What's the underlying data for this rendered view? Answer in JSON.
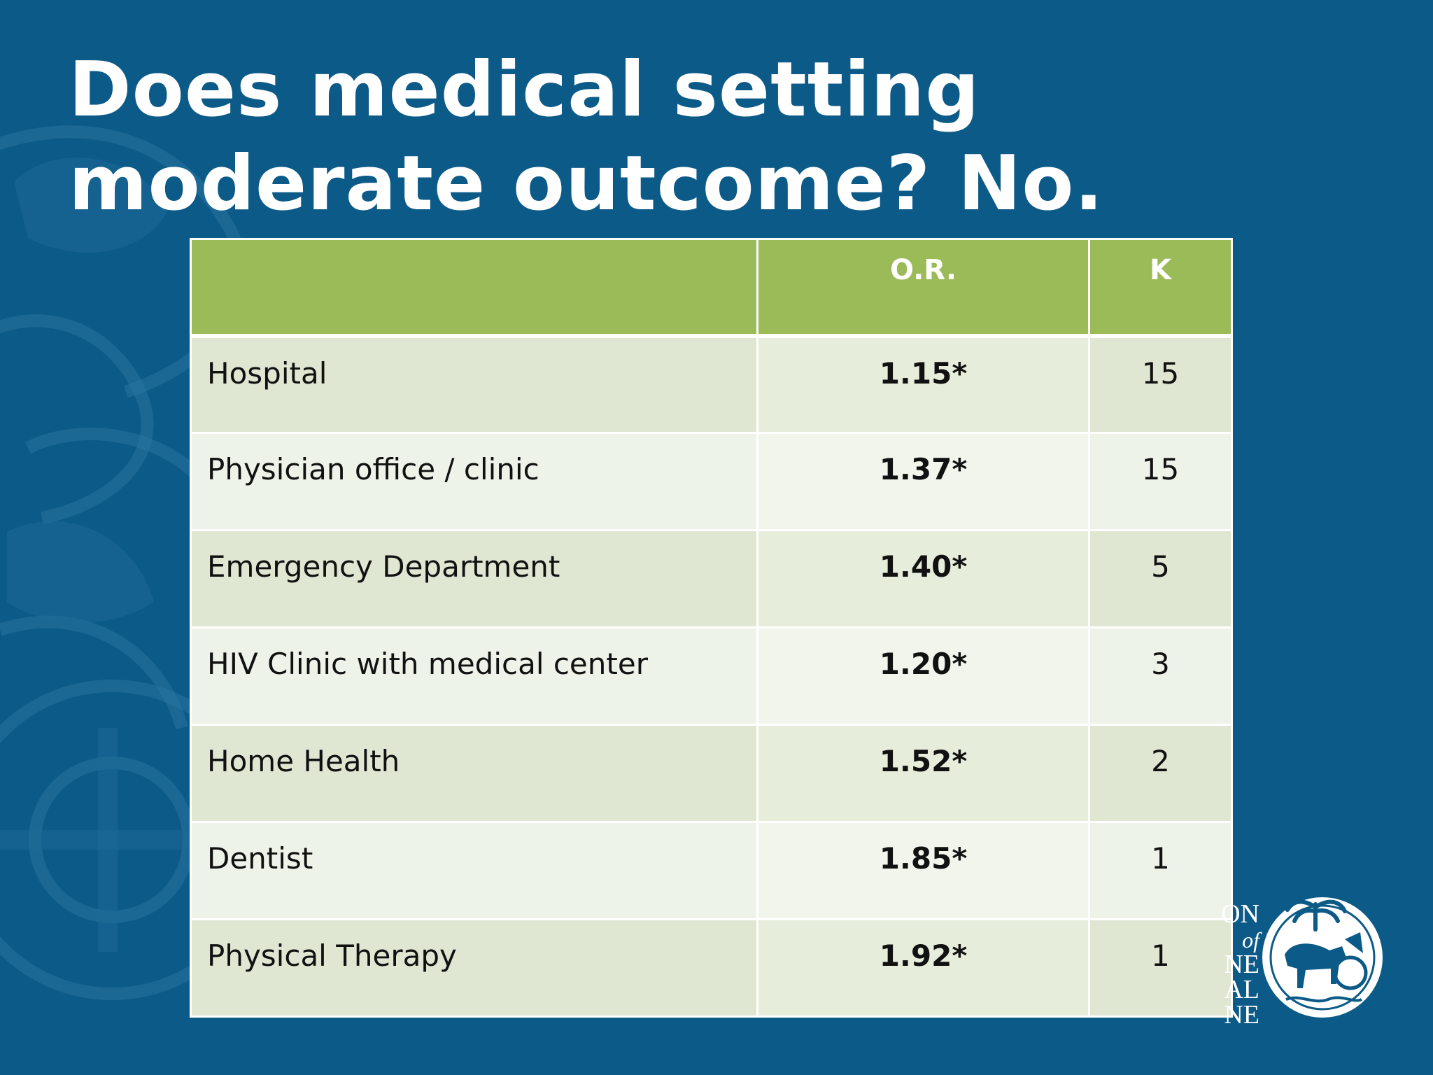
{
  "title": {
    "line1": "Does medical setting",
    "line2": "moderate outcome?  No."
  },
  "table": {
    "headers": [
      "",
      "O.R.",
      "K"
    ],
    "rows": [
      {
        "setting": "Hospital",
        "or": "1.15*",
        "k": "15"
      },
      {
        "setting": "Physician office / clinic",
        "or": "1.37*",
        "k": "15"
      },
      {
        "setting": "Emergency Department",
        "or": "1.40*",
        "k": "5"
      },
      {
        "setting": "HIV Clinic with medical center",
        "or": "1.20*",
        "k": "3"
      },
      {
        "setting": "Home Health",
        "or": "1.52*",
        "k": "2"
      },
      {
        "setting": "Dentist",
        "or": "1.85*",
        "k": "1"
      },
      {
        "setting": "Physical Therapy",
        "or": "1.92*",
        "k": "1"
      }
    ]
  },
  "logo": {
    "text_lines": [
      "ON",
      "of",
      "NE",
      "AL",
      "NE"
    ],
    "icon": "horse-chariot-seal-icon"
  },
  "colors": {
    "background": "#0c5a87",
    "header_green": "#9bbb59",
    "row_band_dark": "#dfe7d3",
    "row_band_light": "#eef3ea"
  }
}
